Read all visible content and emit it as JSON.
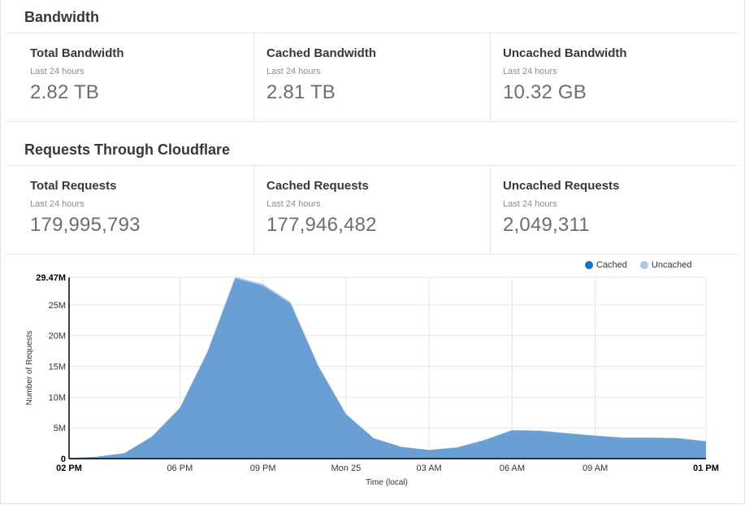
{
  "bandwidth": {
    "title": "Bandwidth",
    "stats": [
      {
        "label": "Total Bandwidth",
        "sub": "Last 24 hours",
        "value": "2.82 TB"
      },
      {
        "label": "Cached Bandwidth",
        "sub": "Last 24 hours",
        "value": "2.81 TB"
      },
      {
        "label": "Uncached Bandwidth",
        "sub": "Last 24 hours",
        "value": "10.32 GB"
      }
    ]
  },
  "requests": {
    "title": "Requests Through Cloudflare",
    "stats": [
      {
        "label": "Total Requests",
        "sub": "Last 24 hours",
        "value": "179,995,793"
      },
      {
        "label": "Cached Requests",
        "sub": "Last 24 hours",
        "value": "177,946,482"
      },
      {
        "label": "Uncached Requests",
        "sub": "Last 24 hours",
        "value": "2,049,311"
      }
    ]
  },
  "colors": {
    "cached": "#1f6fb5",
    "cached_fill": "#6a9fd3",
    "uncached": "#a9c8ec"
  },
  "chart_data": {
    "type": "area",
    "title": "",
    "xlabel": "Time (local)",
    "ylabel": "Number of Requests",
    "legend": [
      {
        "name": "Cached",
        "color_key": "cached"
      },
      {
        "name": "Uncached",
        "color_key": "uncached"
      }
    ],
    "legend_position": "top-right",
    "x_ticks": [
      {
        "hour": 0,
        "label": "02 PM",
        "bold": true
      },
      {
        "hour": 4,
        "label": "06 PM",
        "bold": false
      },
      {
        "hour": 7,
        "label": "09 PM",
        "bold": false
      },
      {
        "hour": 10,
        "label": "Mon 25",
        "bold": false
      },
      {
        "hour": 13,
        "label": "03 AM",
        "bold": false
      },
      {
        "hour": 16,
        "label": "06 AM",
        "bold": false
      },
      {
        "hour": 19,
        "label": "09 AM",
        "bold": false
      },
      {
        "hour": 23,
        "label": "01 PM",
        "bold": true
      }
    ],
    "y_ticks": [
      {
        "value": 0,
        "label": "0",
        "bold": true
      },
      {
        "value": 5,
        "label": "5M",
        "bold": false
      },
      {
        "value": 10,
        "label": "10M",
        "bold": false
      },
      {
        "value": 15,
        "label": "15M",
        "bold": false
      },
      {
        "value": 20,
        "label": "20M",
        "bold": false
      },
      {
        "value": 25,
        "label": "25M",
        "bold": false
      },
      {
        "value": 29.47,
        "label": "29.47M",
        "bold": true
      }
    ],
    "x_range": [
      0,
      23
    ],
    "ylim": [
      0,
      29.47
    ],
    "units": "millions of requests",
    "series": [
      {
        "name": "Cached",
        "x": [
          0,
          1,
          2,
          3,
          4,
          5,
          6,
          7,
          8,
          9,
          10,
          11,
          12,
          13,
          14,
          15,
          16,
          17,
          18,
          19,
          20,
          21,
          22,
          23
        ],
        "values": [
          0.1,
          0.3,
          0.9,
          3.6,
          8.2,
          17.3,
          29.3,
          28.1,
          25.2,
          15.0,
          7.2,
          3.3,
          1.9,
          1.4,
          1.8,
          3.0,
          4.6,
          4.5,
          4.1,
          3.7,
          3.4,
          3.4,
          3.3,
          2.8
        ]
      },
      {
        "name": "Uncached",
        "x": [
          0,
          1,
          2,
          3,
          4,
          5,
          6,
          7,
          8,
          9,
          10,
          11,
          12,
          13,
          14,
          15,
          16,
          17,
          18,
          19,
          20,
          21,
          22,
          23
        ],
        "values": [
          0.0,
          0.0,
          0.0,
          0.05,
          0.1,
          0.2,
          0.25,
          0.3,
          0.25,
          0.15,
          0.1,
          0.05,
          0.03,
          0.03,
          0.03,
          0.05,
          0.08,
          0.08,
          0.07,
          0.06,
          0.06,
          0.06,
          0.06,
          0.05
        ]
      }
    ]
  }
}
